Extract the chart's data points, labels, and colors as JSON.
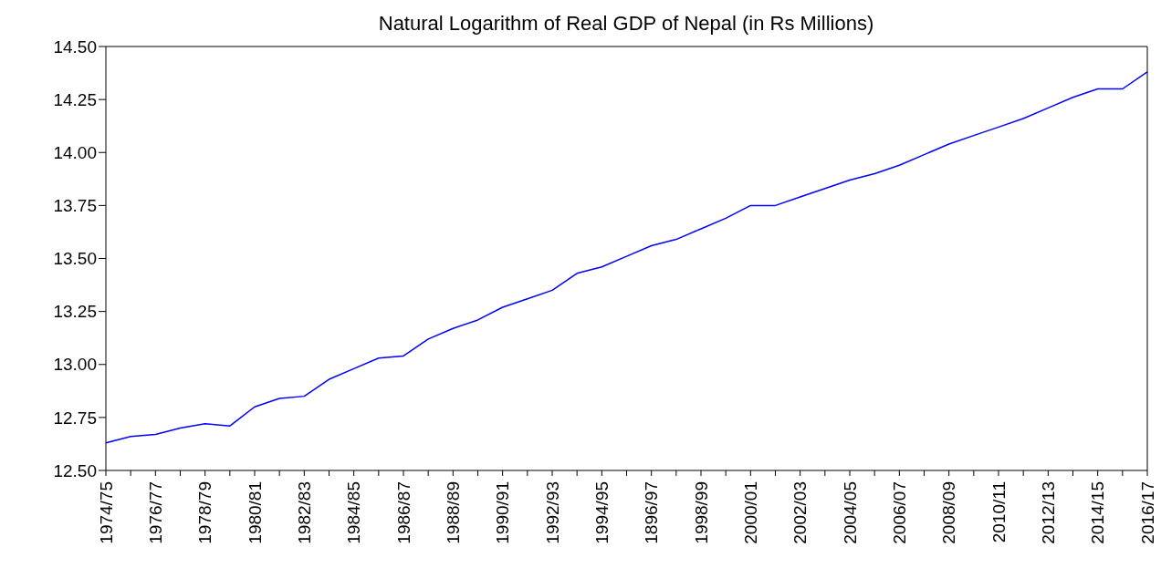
{
  "chart_data": {
    "type": "line",
    "title": "Natural Logarithm of Real GDP of Nepal (in Rs Millions)",
    "categories": [
      "1974/75",
      null,
      "1976/77",
      null,
      "1978/79",
      null,
      "1980/81",
      null,
      "1982/83",
      null,
      "1984/85",
      null,
      "1986/87",
      null,
      "1988/89",
      null,
      "1990/91",
      null,
      "1992/93",
      null,
      "1994/95",
      null,
      "1896/97",
      null,
      "1998/99",
      null,
      "2000/01",
      null,
      "2002/03",
      null,
      "2004/05",
      null,
      "2006/07",
      null,
      "2008/09",
      null,
      "2010/11",
      null,
      "2012/13",
      null,
      "2014/15",
      null,
      "2016/17"
    ],
    "series": [
      {
        "color": "#0000ff",
        "values": [
          12.63,
          12.66,
          12.67,
          12.7,
          12.72,
          12.71,
          12.8,
          12.84,
          12.85,
          12.93,
          12.98,
          13.03,
          13.04,
          13.12,
          13.17,
          13.21,
          13.27,
          13.31,
          13.35,
          13.43,
          13.46,
          13.51,
          13.56,
          13.59,
          13.64,
          13.69,
          13.75,
          13.75,
          13.79,
          13.83,
          13.87,
          13.9,
          13.94,
          13.99,
          14.04,
          14.08,
          14.12,
          14.16,
          14.21,
          14.26,
          14.3,
          14.3,
          14.38
        ]
      }
    ],
    "ylim": [
      12.5,
      14.5
    ],
    "yticks": [
      {
        "value": 12.5,
        "label": "12.50"
      },
      {
        "value": 12.75,
        "label": "12.75"
      },
      {
        "value": 13,
        "label": "13.00"
      },
      {
        "value": 13.25,
        "label": "13.25"
      },
      {
        "value": 13.5,
        "label": "13.50"
      },
      {
        "value": 13.75,
        "label": "13.75"
      },
      {
        "value": 14,
        "label": "14.00"
      },
      {
        "value": 14.25,
        "label": "14.25"
      },
      {
        "value": 14.5,
        "label": "14.50"
      }
    ],
    "grid": false,
    "legend": false,
    "marker": "none",
    "line_style": "solid"
  }
}
